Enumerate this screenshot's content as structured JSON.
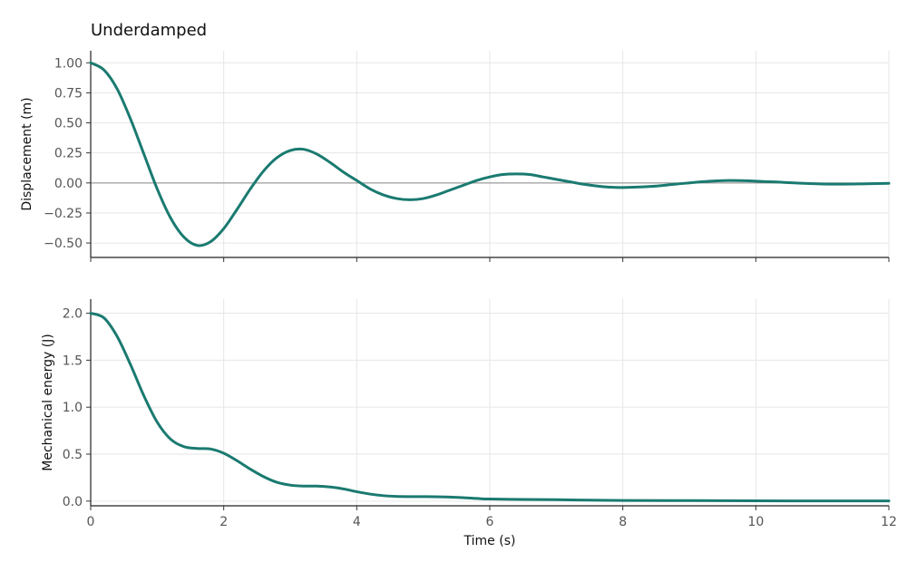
{
  "chart_data": {
    "type": "line",
    "title": "Underdamped",
    "xlabel": "Time (s)",
    "xlim": [
      0,
      12
    ],
    "x_ticks": [
      0,
      2,
      4,
      6,
      8,
      10,
      12
    ],
    "x_tick_labels": [
      "0",
      "2",
      "4",
      "6",
      "8",
      "10",
      "12"
    ],
    "grid": true,
    "line_color": "#1a7a70",
    "panels": [
      {
        "ylabel": "Displacement (m)",
        "ylim": [
          -0.62,
          1.1
        ],
        "y_ticks": [
          1.0,
          0.75,
          0.5,
          0.25,
          0.0,
          -0.25,
          -0.5
        ],
        "y_tick_labels": [
          "1.00",
          "0.75",
          "0.50",
          "0.25",
          "0.00",
          "−0.25",
          "−0.50"
        ],
        "zero_line": true,
        "series": [
          {
            "x": [
              0,
              0.2,
              0.4,
              0.6,
              0.8,
              1.0,
              1.2,
              1.4,
              1.6,
              1.8,
              2.0,
              2.2,
              2.4,
              2.6,
              2.8,
              3.0,
              3.2,
              3.4,
              3.6,
              3.8,
              4.0,
              4.2,
              4.4,
              4.6,
              4.8,
              5.0,
              5.2,
              5.4,
              5.6,
              5.8,
              6.0,
              6.2,
              6.4,
              6.6,
              6.8,
              7.0,
              7.2,
              7.4,
              7.6,
              7.8,
              8.0,
              8.4,
              8.8,
              9.2,
              9.6,
              10.0,
              10.4,
              10.8,
              11.2,
              11.6,
              12.0
            ],
            "y": [
              1.0,
              0.94,
              0.78,
              0.53,
              0.24,
              -0.05,
              -0.29,
              -0.45,
              -0.52,
              -0.49,
              -0.38,
              -0.22,
              -0.05,
              0.1,
              0.21,
              0.27,
              0.28,
              0.24,
              0.17,
              0.09,
              0.02,
              -0.05,
              -0.1,
              -0.13,
              -0.14,
              -0.13,
              -0.1,
              -0.06,
              -0.02,
              0.02,
              0.05,
              0.07,
              0.075,
              0.07,
              0.05,
              0.03,
              0.01,
              -0.01,
              -0.025,
              -0.035,
              -0.038,
              -0.03,
              -0.01,
              0.01,
              0.02,
              0.015,
              0.005,
              -0.005,
              -0.01,
              -0.008,
              -0.003
            ]
          }
        ]
      },
      {
        "ylabel": "Mechanical energy (J)",
        "ylim": [
          -0.05,
          2.15
        ],
        "y_ticks": [
          2.0,
          1.5,
          1.0,
          0.5,
          0.0
        ],
        "y_tick_labels": [
          "2.0",
          "1.5",
          "1.0",
          "0.5",
          "0.0"
        ],
        "zero_line": false,
        "series": [
          {
            "x": [
              0,
              0.2,
              0.4,
              0.6,
              0.8,
              1.0,
              1.2,
              1.4,
              1.6,
              1.8,
              2.0,
              2.2,
              2.4,
              2.6,
              2.8,
              3.0,
              3.2,
              3.4,
              3.6,
              3.8,
              4.0,
              4.2,
              4.4,
              4.6,
              4.8,
              5.0,
              5.4,
              5.8,
              6.0,
              6.5,
              7.0,
              7.5,
              8.0,
              9.0,
              10.0,
              11.0,
              12.0
            ],
            "y": [
              2.0,
              1.95,
              1.75,
              1.45,
              1.12,
              0.84,
              0.66,
              0.58,
              0.56,
              0.555,
              0.51,
              0.43,
              0.34,
              0.26,
              0.2,
              0.17,
              0.16,
              0.16,
              0.15,
              0.13,
              0.1,
              0.075,
              0.058,
              0.05,
              0.048,
              0.048,
              0.043,
              0.028,
              0.022,
              0.018,
              0.015,
              0.01,
              0.007,
              0.005,
              0.003,
              0.002,
              0.002
            ]
          }
        ]
      }
    ]
  }
}
